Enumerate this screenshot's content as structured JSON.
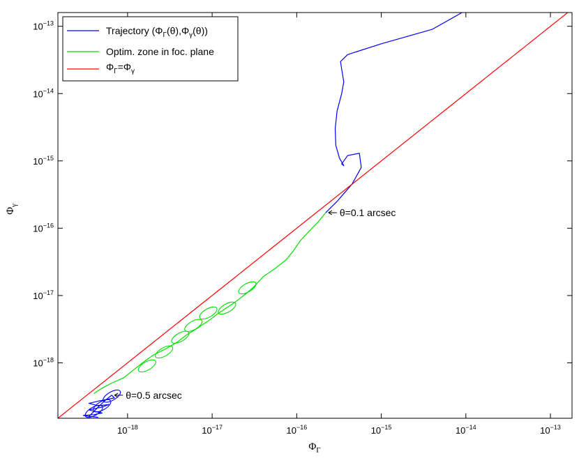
{
  "chart_data": {
    "type": "line",
    "title": "",
    "xlabel": "ΦΓ",
    "ylabel": "Φγ",
    "x_scale": "log",
    "y_scale": "log",
    "xlim": [
      1.5e-19,
      1.8e-13
    ],
    "ylim": [
      1.5e-19,
      1.6e-13
    ],
    "grid": false,
    "legend_position": "top-left",
    "x_ticks": [
      1e-18,
      1e-17,
      1e-16,
      1e-15,
      1e-14,
      1e-13
    ],
    "x_tick_labels": [
      "10−18",
      "10−17",
      "10−16",
      "10−15",
      "10−14",
      "10−13"
    ],
    "y_ticks": [
      1e-18,
      1e-17,
      1e-16,
      1e-15,
      1e-14,
      1e-13
    ],
    "y_tick_labels": [
      "10−18",
      "10−17",
      "10−16",
      "10−15",
      "10−14",
      "10−13"
    ],
    "series": [
      {
        "name": "Trajectory (ΦΓ(θ),Φγ(θ))",
        "color": "#0000ff",
        "x": [
          3.5e-19,
          4.5e-19,
          5.5e-19,
          6.5e-19,
          7e-19,
          4.5e-19,
          3.5e-19,
          4.5e-19,
          6e-19,
          5e-19,
          3.5e-19,
          4e-19,
          5e-19,
          4e-19,
          3e-19,
          3.5e-19,
          4.5e-19
        ],
        "y": [
          1.6e-19,
          2.2e-19,
          2.8e-19,
          3.3e-19,
          3e-19,
          2.7e-19,
          2.5e-19,
          2.3e-19,
          2.4e-19,
          2.2e-19,
          2e-19,
          1.9e-19,
          1.8e-19,
          1.7e-19,
          1.65e-19,
          1.6e-19,
          1.55e-19
        ]
      },
      {
        "name": "Trajectory (ΦΓ(θ),Φγ(θ))",
        "color": "#0000ff",
        "x": [
          2.2e-16,
          3e-16,
          4.5e-16,
          5.8e-16,
          5.5e-16,
          4e-16,
          3.4e-16,
          3.6e-16,
          3.2e-16,
          2.9e-16,
          2.85e-16,
          3e-16,
          3.4e-16,
          3.6e-16,
          3.4e-16,
          3.3e-16,
          4e-16,
          1e-15,
          4e-15,
          9e-15
        ],
        "y": [
          1.7e-16,
          2.5e-16,
          4.5e-16,
          8e-16,
          1.3e-15,
          1.2e-15,
          9e-16,
          8.5e-16,
          1.1e-15,
          1.7e-15,
          3e-15,
          5.5e-15,
          1e-14,
          1.5e-14,
          2.3e-14,
          3e-14,
          3.8e-14,
          5.5e-14,
          9e-14,
          1.6e-13
        ]
      },
      {
        "name": "Optim. zone in foc. plane",
        "color": "#00dd00",
        "x": [
          4e-19,
          5e-19,
          6.5e-19,
          9e-19,
          1.2e-18,
          1.5e-18,
          2e-18,
          2.8e-18,
          3.8e-18,
          5e-18,
          6.5e-18,
          9e-18,
          1.2e-17,
          1.6e-17,
          2e-17,
          2.6e-17,
          3.2e-17,
          4e-17,
          5.5e-17,
          7.5e-17,
          9e-17,
          1.1e-16,
          1.4e-16,
          1.8e-16,
          2.2e-16
        ],
        "y": [
          3.5e-19,
          4.2e-19,
          5e-19,
          6e-19,
          8e-19,
          1e-18,
          1.3e-18,
          1.6e-18,
          2e-18,
          2.6e-18,
          3.2e-18,
          4.2e-18,
          5.5e-18,
          7e-18,
          8.5e-18,
          1.1e-17,
          1.4e-17,
          1.9e-17,
          2.5e-17,
          3.4e-17,
          4.5e-17,
          6.5e-17,
          9e-17,
          1.25e-16,
          1.7e-16
        ]
      },
      {
        "name": "ΦΓ=Φγ",
        "color": "#ff0000",
        "x": [
          1.5e-19,
          1.8e-13
        ],
        "y": [
          1.5e-19,
          1.8e-13
        ]
      }
    ],
    "loops": [
      {
        "x": 1.7e-18,
        "y": 9e-19,
        "color": "#00dd00"
      },
      {
        "x": 2.7e-18,
        "y": 1.45e-18,
        "color": "#00dd00"
      },
      {
        "x": 4.2e-18,
        "y": 2.4e-18,
        "color": "#00dd00"
      },
      {
        "x": 6e-18,
        "y": 3.6e-18,
        "color": "#00dd00"
      },
      {
        "x": 9e-18,
        "y": 5.5e-18,
        "color": "#00dd00"
      },
      {
        "x": 1.5e-17,
        "y": 6.5e-18,
        "color": "#00dd00"
      },
      {
        "x": 2.6e-17,
        "y": 1.3e-17,
        "color": "#00dd00"
      },
      {
        "x": 6.5e-19,
        "y": 3.2e-19,
        "color": "#0000ff"
      },
      {
        "x": 5e-19,
        "y": 2.3e-19,
        "color": "#0000ff"
      },
      {
        "x": 4e-19,
        "y": 1.9e-19,
        "color": "#0000ff"
      }
    ],
    "legend": {
      "entries": [
        {
          "label": "Trajectory (ΦΓ(θ),Φγ(θ))",
          "color": "#0000ff"
        },
        {
          "label": "Optim. zone in foc. plane",
          "color": "#00dd00"
        },
        {
          "label": "ΦΓ=Φγ",
          "color": "#ff0000"
        }
      ]
    },
    "annotations": [
      {
        "text": "θ=0.1 arcsec",
        "x": 2.2e-16,
        "y": 1.7e-16
      },
      {
        "text": "θ=0.5 arcsec",
        "x": 6.5e-19,
        "y": 3.3e-19
      }
    ]
  }
}
